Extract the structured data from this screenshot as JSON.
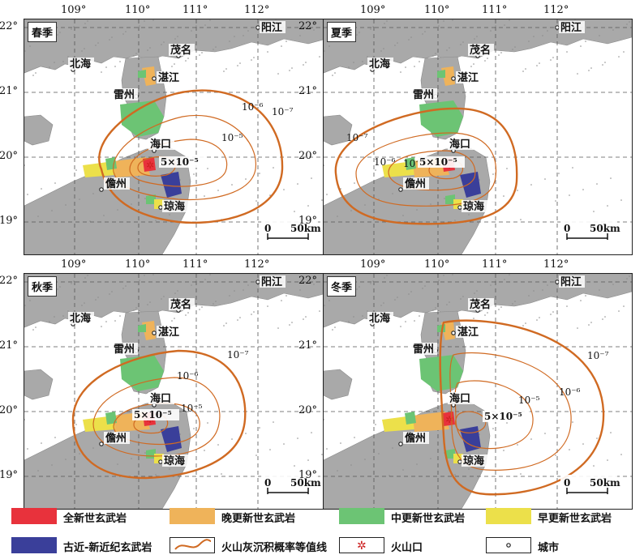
{
  "lon_labels": [
    "109°",
    "110°",
    "111°",
    "112°"
  ],
  "lat_labels": [
    "22°",
    "21°",
    "20°",
    "19°"
  ],
  "panels": [
    {
      "season": "春季",
      "contours": {
        "c7": "10⁻⁷",
        "c6": "10⁻⁶",
        "c5": "10⁻⁵",
        "c55": "5×10⁻⁵"
      }
    },
    {
      "season": "夏季",
      "contours": {
        "c7": "10⁻⁷",
        "c6": "10⁻⁶",
        "c5": "10⁻⁵",
        "c55": "5×10⁻⁵"
      }
    },
    {
      "season": "秋季",
      "contours": {
        "c7": "10⁻⁷",
        "c6": "10⁻⁶",
        "c5": "10⁻⁵",
        "c55": "5×10⁻⁵"
      }
    },
    {
      "season": "冬季",
      "contours": {
        "c7": "10⁻⁷",
        "c6": "10⁻⁶",
        "c5": "10⁻⁵",
        "c55": "5×10⁻⁵"
      }
    }
  ],
  "cities": {
    "yangjiang": "阳江",
    "maoming": "茂名",
    "beihai": "北海",
    "zhanjiang": "湛江",
    "leizhou": "雷州",
    "haikou": "海口",
    "danzhou": "儋州",
    "qionghai": "琼海"
  },
  "scalebar": {
    "zero": "0",
    "dist": "50km"
  },
  "legend": [
    {
      "label": "全新世玄武岩",
      "color": "#e8323c"
    },
    {
      "label": "晚更新世玄武岩",
      "color": "#efb35a"
    },
    {
      "label": "中更新世玄武岩",
      "color": "#6cc474"
    },
    {
      "label": "早更新世玄武岩",
      "color": "#ece04a"
    },
    {
      "label": "古近-新近纪玄武岩",
      "color": "#3a3f9a"
    },
    {
      "label": "火山灰沉积概率等值线",
      "color": "#d2691e"
    },
    {
      "label": "火山口",
      "color": "#cc2020"
    },
    {
      "label": "城市",
      "color": "#222222"
    }
  ],
  "colors": {
    "land": "#a9a9a9",
    "contour": "#d06a22"
  }
}
